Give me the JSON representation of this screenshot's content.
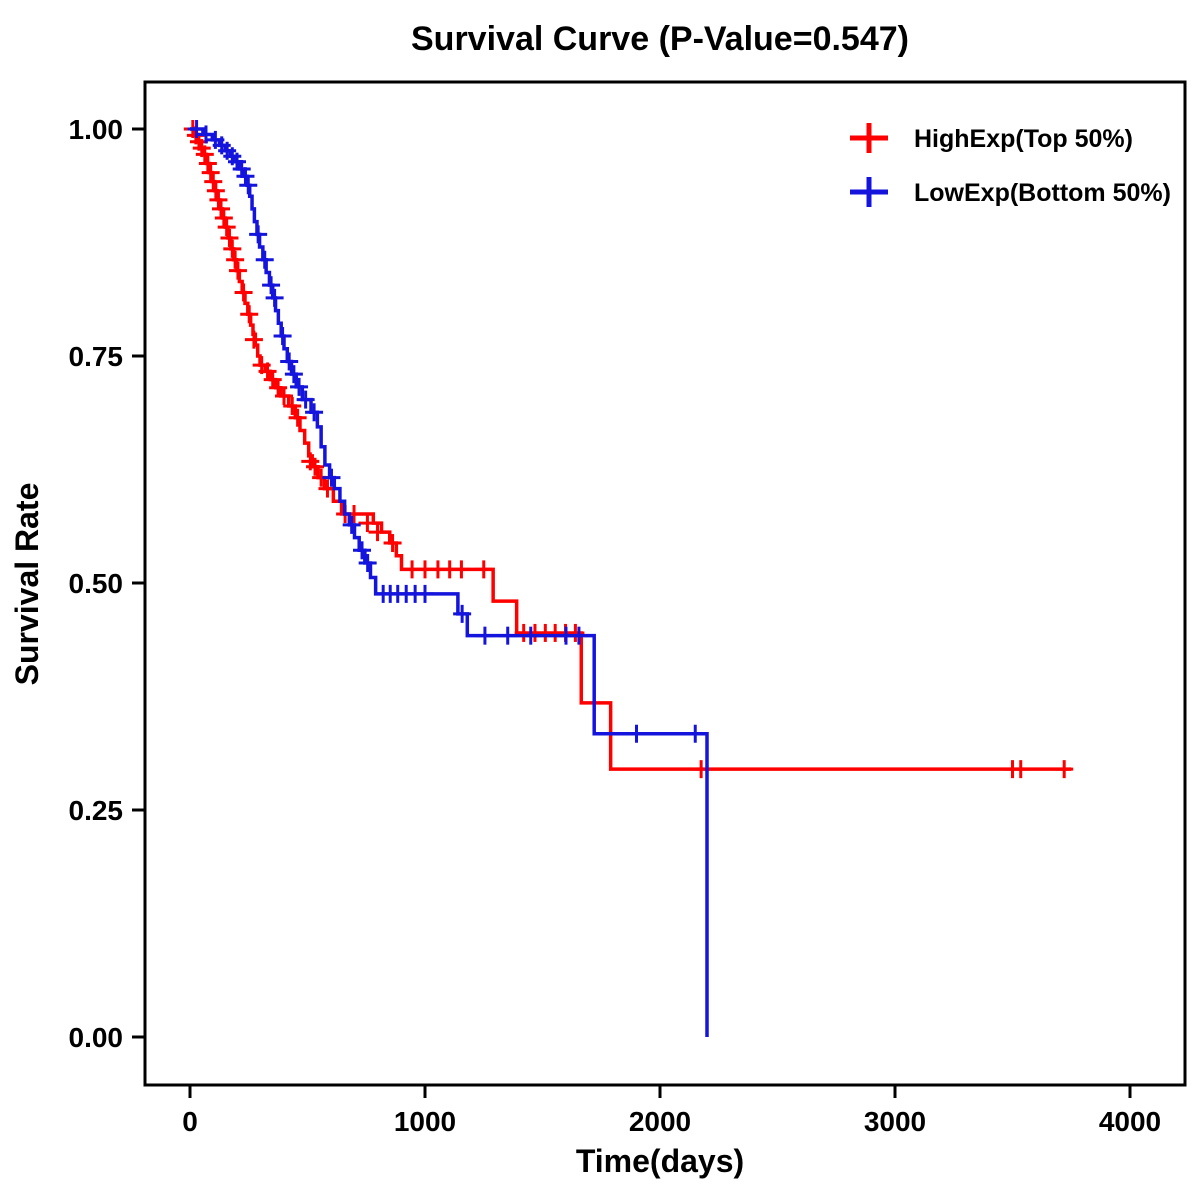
{
  "chart_data": {
    "type": "line",
    "subtype": "kaplan-meier-step-survival",
    "title": "Survival Curve (P-Value=0.547)",
    "p_value": "0.547",
    "xlabel": "Time(days)",
    "ylabel": "Survival Rate",
    "xlim": [
      0,
      4000
    ],
    "ylim": [
      0.0,
      1.0
    ],
    "xticks": [
      "0",
      "1000",
      "2000",
      "3000",
      "4000"
    ],
    "yticks": [
      "0.00",
      "0.25",
      "0.50",
      "0.75",
      "1.00"
    ],
    "grid": "off",
    "legend_position": "top-right",
    "series": [
      {
        "name": "HighExp(Top 50%)",
        "color": "#FF0000",
        "steps": [
          [
            0,
            1.0
          ],
          [
            18,
            0.993
          ],
          [
            32,
            0.986
          ],
          [
            45,
            0.979
          ],
          [
            58,
            0.972
          ],
          [
            70,
            0.962
          ],
          [
            82,
            0.952
          ],
          [
            94,
            0.942
          ],
          [
            105,
            0.932
          ],
          [
            116,
            0.922
          ],
          [
            127,
            0.912
          ],
          [
            138,
            0.902
          ],
          [
            150,
            0.892
          ],
          [
            162,
            0.88
          ],
          [
            174,
            0.868
          ],
          [
            186,
            0.856
          ],
          [
            198,
            0.844
          ],
          [
            210,
            0.832
          ],
          [
            222,
            0.82
          ],
          [
            234,
            0.808
          ],
          [
            246,
            0.796
          ],
          [
            258,
            0.784
          ],
          [
            268,
            0.774
          ],
          [
            278,
            0.762
          ],
          [
            288,
            0.75
          ],
          [
            298,
            0.74
          ],
          [
            320,
            0.733
          ],
          [
            342,
            0.724
          ],
          [
            364,
            0.715
          ],
          [
            386,
            0.706
          ],
          [
            420,
            0.695
          ],
          [
            448,
            0.682
          ],
          [
            468,
            0.668
          ],
          [
            488,
            0.654
          ],
          [
            505,
            0.64
          ],
          [
            520,
            0.628
          ],
          [
            545,
            0.616
          ],
          [
            572,
            0.604
          ],
          [
            610,
            0.59
          ],
          [
            645,
            0.576
          ],
          [
            780,
            0.566
          ],
          [
            815,
            0.556
          ],
          [
            850,
            0.544
          ],
          [
            878,
            0.53
          ],
          [
            900,
            0.515
          ],
          [
            1290,
            0.48
          ],
          [
            1390,
            0.445
          ],
          [
            1665,
            0.368
          ],
          [
            1790,
            0.295
          ],
          [
            3750,
            0.295
          ]
        ],
        "censors": [
          [
            12,
            1.0
          ],
          [
            25,
            0.993
          ],
          [
            38,
            0.986
          ],
          [
            50,
            0.979
          ],
          [
            63,
            0.972
          ],
          [
            76,
            0.962
          ],
          [
            88,
            0.952
          ],
          [
            99,
            0.942
          ],
          [
            110,
            0.932
          ],
          [
            121,
            0.922
          ],
          [
            132,
            0.912
          ],
          [
            144,
            0.902
          ],
          [
            156,
            0.892
          ],
          [
            168,
            0.88
          ],
          [
            180,
            0.868
          ],
          [
            192,
            0.856
          ],
          [
            204,
            0.844
          ],
          [
            228,
            0.82
          ],
          [
            252,
            0.796
          ],
          [
            272,
            0.768
          ],
          [
            305,
            0.74
          ],
          [
            330,
            0.733
          ],
          [
            352,
            0.724
          ],
          [
            375,
            0.715
          ],
          [
            400,
            0.706
          ],
          [
            435,
            0.695
          ],
          [
            458,
            0.682
          ],
          [
            512,
            0.634
          ],
          [
            532,
            0.628
          ],
          [
            558,
            0.616
          ],
          [
            585,
            0.604
          ],
          [
            660,
            0.576
          ],
          [
            698,
            0.576
          ],
          [
            755,
            0.566
          ],
          [
            798,
            0.556
          ],
          [
            862,
            0.544
          ],
          [
            945,
            0.515
          ],
          [
            1000,
            0.515
          ],
          [
            1055,
            0.515
          ],
          [
            1105,
            0.515
          ],
          [
            1155,
            0.515
          ],
          [
            1250,
            0.515
          ],
          [
            1420,
            0.445
          ],
          [
            1468,
            0.445
          ],
          [
            1512,
            0.445
          ],
          [
            1554,
            0.445
          ],
          [
            1598,
            0.445
          ],
          [
            1640,
            0.445
          ],
          [
            2175,
            0.295
          ],
          [
            3500,
            0.295
          ],
          [
            3535,
            0.295
          ],
          [
            3720,
            0.295
          ]
        ]
      },
      {
        "name": "LowExp(Bottom 50%)",
        "color": "#1414DC",
        "steps": [
          [
            0,
            1.0
          ],
          [
            55,
            0.994
          ],
          [
            95,
            0.988
          ],
          [
            125,
            0.982
          ],
          [
            150,
            0.976
          ],
          [
            172,
            0.97
          ],
          [
            192,
            0.964
          ],
          [
            212,
            0.956
          ],
          [
            230,
            0.948
          ],
          [
            243,
            0.938
          ],
          [
            254,
            0.926
          ],
          [
            264,
            0.912
          ],
          [
            274,
            0.898
          ],
          [
            285,
            0.884
          ],
          [
            296,
            0.87
          ],
          [
            310,
            0.856
          ],
          [
            324,
            0.842
          ],
          [
            338,
            0.828
          ],
          [
            352,
            0.814
          ],
          [
            364,
            0.8
          ],
          [
            376,
            0.786
          ],
          [
            388,
            0.772
          ],
          [
            400,
            0.758
          ],
          [
            414,
            0.744
          ],
          [
            432,
            0.73
          ],
          [
            452,
            0.716
          ],
          [
            478,
            0.702
          ],
          [
            515,
            0.688
          ],
          [
            542,
            0.672
          ],
          [
            558,
            0.65
          ],
          [
            574,
            0.63
          ],
          [
            594,
            0.616
          ],
          [
            614,
            0.604
          ],
          [
            638,
            0.59
          ],
          [
            658,
            0.576
          ],
          [
            678,
            0.564
          ],
          [
            700,
            0.55
          ],
          [
            720,
            0.536
          ],
          [
            744,
            0.522
          ],
          [
            768,
            0.506
          ],
          [
            790,
            0.488
          ],
          [
            1140,
            0.466
          ],
          [
            1180,
            0.442
          ],
          [
            1720,
            0.334
          ],
          [
            2200,
            0.0
          ]
        ],
        "censors": [
          [
            28,
            1.0
          ],
          [
            68,
            0.994
          ],
          [
            108,
            0.988
          ],
          [
            135,
            0.982
          ],
          [
            158,
            0.976
          ],
          [
            180,
            0.97
          ],
          [
            200,
            0.964
          ],
          [
            220,
            0.956
          ],
          [
            236,
            0.948
          ],
          [
            248,
            0.938
          ],
          [
            290,
            0.884
          ],
          [
            318,
            0.856
          ],
          [
            345,
            0.828
          ],
          [
            360,
            0.814
          ],
          [
            394,
            0.772
          ],
          [
            422,
            0.744
          ],
          [
            442,
            0.73
          ],
          [
            464,
            0.716
          ],
          [
            492,
            0.702
          ],
          [
            528,
            0.688
          ],
          [
            602,
            0.616
          ],
          [
            688,
            0.564
          ],
          [
            732,
            0.536
          ],
          [
            756,
            0.522
          ],
          [
            822,
            0.488
          ],
          [
            852,
            0.488
          ],
          [
            884,
            0.488
          ],
          [
            920,
            0.488
          ],
          [
            958,
            0.488
          ],
          [
            1000,
            0.488
          ],
          [
            1158,
            0.466
          ],
          [
            1255,
            0.442
          ],
          [
            1352,
            0.442
          ],
          [
            1450,
            0.442
          ],
          [
            1600,
            0.442
          ],
          [
            1655,
            0.442
          ],
          [
            1900,
            0.334
          ],
          [
            2150,
            0.334
          ]
        ]
      }
    ]
  }
}
